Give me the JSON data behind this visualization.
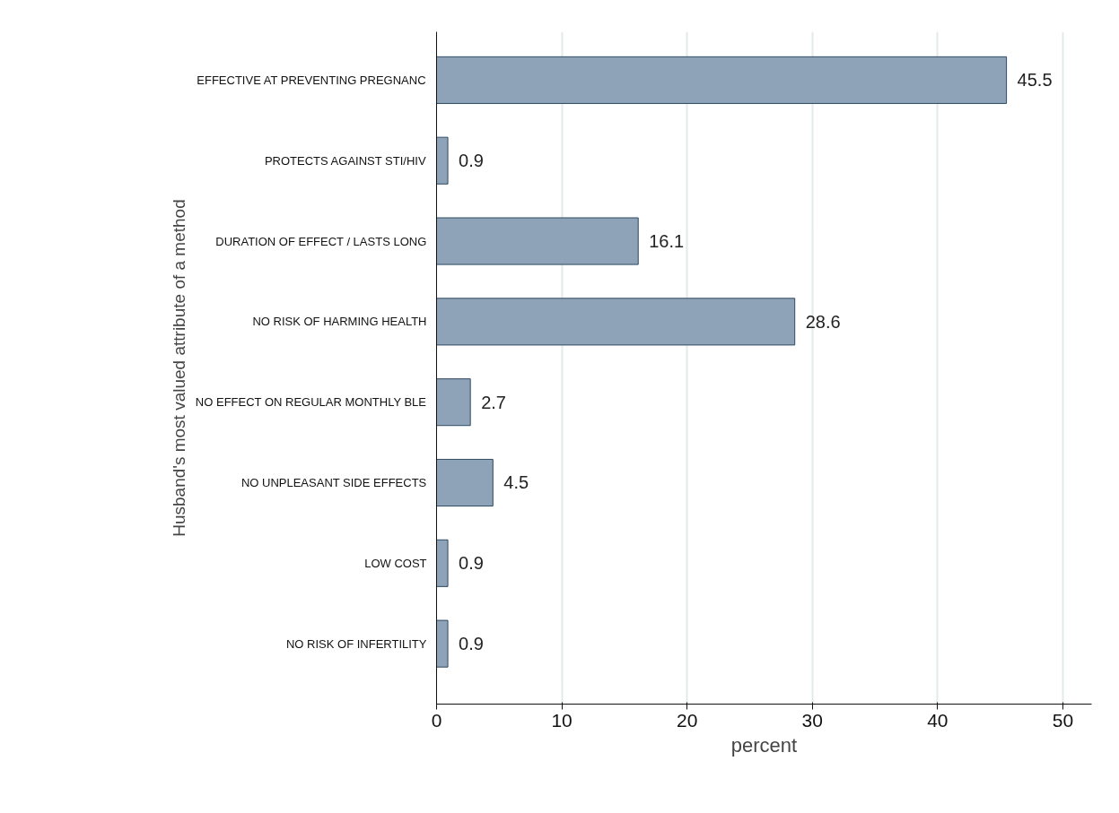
{
  "chart_data": {
    "type": "bar",
    "orientation": "horizontal",
    "xlabel": "percent",
    "ylabel": "Husband's most valued attribute of a method",
    "categories": [
      "EFFECTIVE AT PREVENTING PREGNANC",
      "PROTECTS AGAINST STI/HIV",
      "DURATION OF EFFECT / LASTS LONG",
      "NO RISK OF HARMING HEALTH",
      "NO EFFECT ON REGULAR MONTHLY BLE",
      "NO UNPLEASANT SIDE EFFECTS",
      "LOW COST",
      "NO RISK OF INFERTILITY"
    ],
    "values": [
      45.5,
      0.9,
      16.1,
      28.6,
      2.7,
      4.5,
      0.9,
      0.9
    ],
    "color": "#8ea3b7",
    "xlim": [
      0,
      52.3
    ],
    "xticks": [
      0,
      10,
      20,
      30,
      40,
      50
    ],
    "grid": "x",
    "data_labels": true
  }
}
